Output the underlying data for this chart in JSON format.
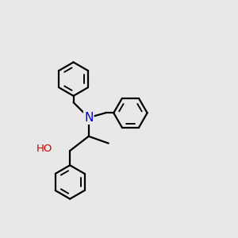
{
  "bg_color": "#e8e8e8",
  "atom_colors": {
    "N": "#0000cc",
    "O": "#cc0000",
    "C": "#000000",
    "H": "#000000"
  },
  "bond_lw": 1.6,
  "ring_r": 0.72,
  "figsize": [
    3.0,
    3.0
  ],
  "dpi": 100,
  "xlim": [
    0,
    10
  ],
  "ylim": [
    0,
    10
  ]
}
